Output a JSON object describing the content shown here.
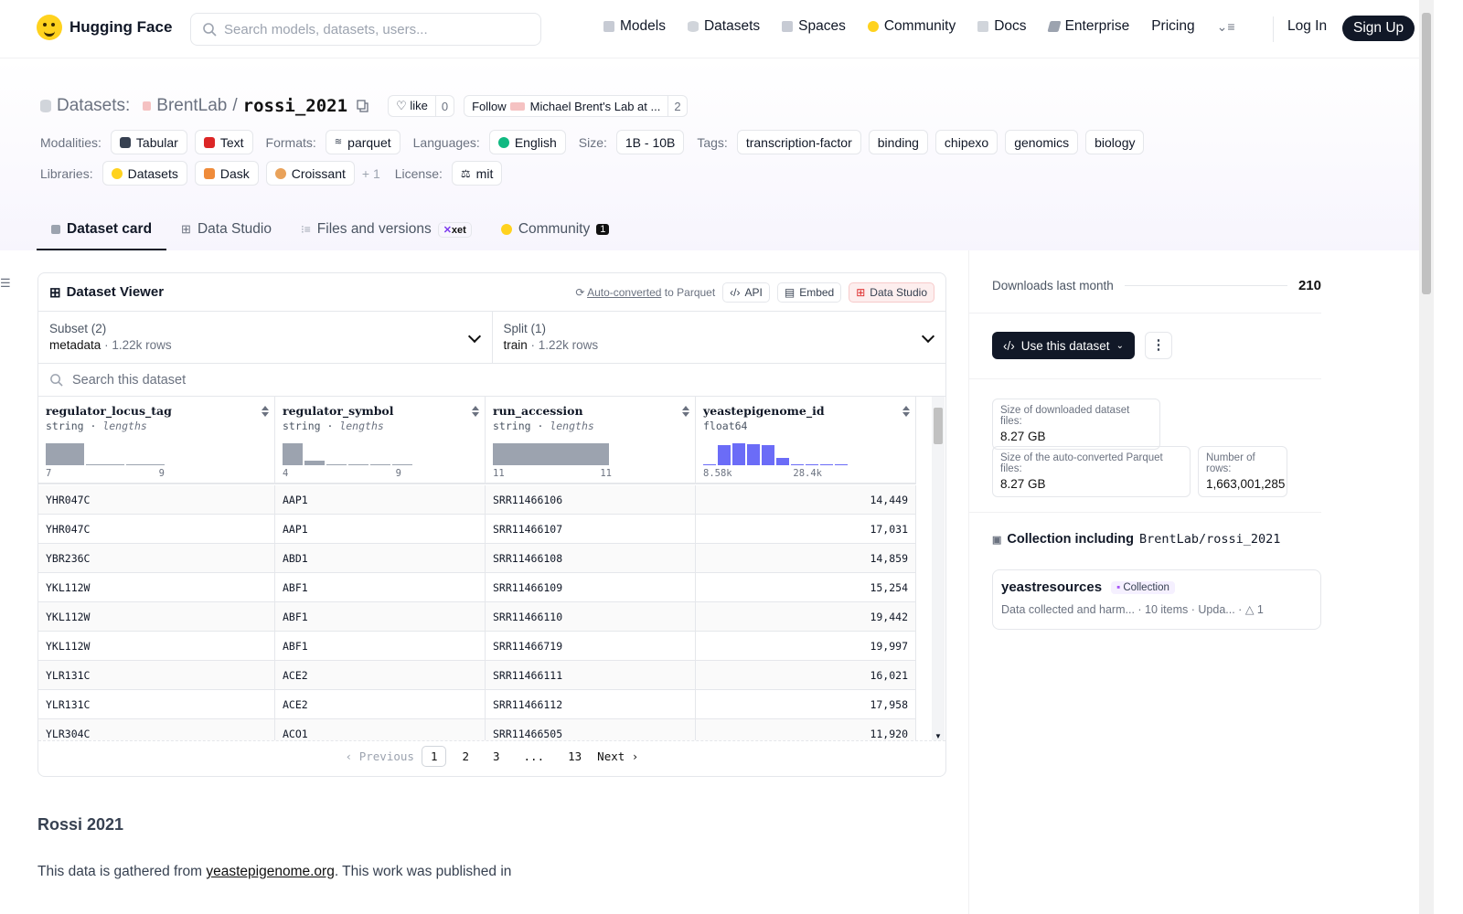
{
  "nav": {
    "brand": "Hugging Face",
    "search_placeholder": "Search models, datasets, users...",
    "links": [
      {
        "label": "Models",
        "icon": "cube-icon"
      },
      {
        "label": "Datasets",
        "icon": "database-icon"
      },
      {
        "label": "Spaces",
        "icon": "spaces-grid-icon"
      },
      {
        "label": "Community",
        "icon": "community-icon"
      },
      {
        "label": "Docs",
        "icon": "book-icon"
      },
      {
        "label": "Enterprise",
        "icon": "enterprise-icon"
      },
      {
        "label": "Pricing",
        "icon": ""
      }
    ],
    "login": "Log In",
    "signup": "Sign Up"
  },
  "header": {
    "section": "Datasets:",
    "org": "BrentLab",
    "sep": "/",
    "repo": "rossi_2021",
    "like_label": "like",
    "like_count": "0",
    "follow_label": "Follow",
    "follow_org": "Michael Brent's Lab at ...",
    "follow_count": "2"
  },
  "meta": {
    "modalities_label": "Modalities:",
    "modalities": [
      "Tabular",
      "Text"
    ],
    "formats_label": "Formats:",
    "formats": [
      "parquet"
    ],
    "languages_label": "Languages:",
    "languages": [
      "English"
    ],
    "size_label": "Size:",
    "size": "1B - 10B",
    "tags_label": "Tags:",
    "tags": [
      "transcription-factor",
      "binding",
      "chipexo",
      "genomics",
      "biology"
    ],
    "libraries_label": "Libraries:",
    "libraries": [
      "Datasets",
      "Dask",
      "Croissant"
    ],
    "libraries_more": "+ 1",
    "license_label": "License:",
    "license": "mit"
  },
  "tabs": [
    {
      "label": "Dataset card",
      "active": true
    },
    {
      "label": "Data Studio"
    },
    {
      "label": "Files and versions",
      "badge": "xet"
    },
    {
      "label": "Community",
      "count": "1"
    }
  ],
  "viewer": {
    "title": "Dataset Viewer",
    "auto_converted": "Auto-converted",
    "to_parquet": "to Parquet",
    "api": "API",
    "embed": "Embed",
    "data_studio": "Data Studio",
    "subset_label": "Subset (2)",
    "subset_value": "metadata",
    "subset_rows": "1.22k rows",
    "split_label": "Split (1)",
    "split_value": "train",
    "split_rows": "1.22k rows",
    "search_placeholder": "Search this dataset",
    "columns": [
      {
        "name": "regulator_locus_tag",
        "type": "string",
        "stat": "lengths",
        "min": "7",
        "max": "9",
        "hist": [
          1.0,
          0.05,
          0.02
        ]
      },
      {
        "name": "regulator_symbol",
        "type": "string",
        "stat": "lengths",
        "min": "4",
        "max": "9",
        "hist": [
          1.0,
          0.2,
          0.05,
          0.05,
          0.05,
          0.02
        ]
      },
      {
        "name": "run_accession",
        "type": "string",
        "stat": "lengths",
        "min": "11",
        "max": "11",
        "hist": [
          1.0
        ]
      },
      {
        "name": "yeastepigenome_id",
        "type": "float64",
        "stat": "",
        "min": "8.58k",
        "max": "28.4k",
        "hist": [
          0.05,
          0.9,
          1.0,
          0.95,
          0.9,
          0.35,
          0.05,
          0.05,
          0.05,
          0.05
        ]
      }
    ],
    "rows": [
      [
        "YHR047C",
        "AAP1",
        "SRR11466106",
        "14,449"
      ],
      [
        "YHR047C",
        "AAP1",
        "SRR11466107",
        "17,031"
      ],
      [
        "YBR236C",
        "ABD1",
        "SRR11466108",
        "14,859"
      ],
      [
        "YKL112W",
        "ABF1",
        "SRR11466109",
        "15,254"
      ],
      [
        "YKL112W",
        "ABF1",
        "SRR11466110",
        "19,442"
      ],
      [
        "YKL112W",
        "ABF1",
        "SRR11466719",
        "19,997"
      ],
      [
        "YLR131C",
        "ACE2",
        "SRR11466111",
        "16,021"
      ],
      [
        "YLR131C",
        "ACE2",
        "SRR11466112",
        "17,958"
      ],
      [
        "YLR304C",
        "ACO1",
        "SRR11466505",
        "11,920"
      ]
    ],
    "pager": {
      "prev": "Previous",
      "pages": [
        "1",
        "2",
        "3",
        "...",
        "13"
      ],
      "next": "Next"
    }
  },
  "card": {
    "heading": "Rossi 2021",
    "text_before": "This data is gathered from ",
    "link": "yeastepigenome.org",
    "text_after": ". This work was published in"
  },
  "sidebar": {
    "downloads_label": "Downloads last month",
    "downloads": "210",
    "use_dataset": "Use this dataset",
    "downloaded_size_label": "Size of downloaded dataset files:",
    "downloaded_size": "8.27 GB",
    "parquet_size_label": "Size of the auto-converted Parquet files:",
    "parquet_size": "8.27 GB",
    "num_rows_label": "Number of rows:",
    "num_rows": "1,663,001,285",
    "collection_heading": "Collection including",
    "collection_repo": "BrentLab/rossi_2021",
    "collection_name": "yeastresources",
    "collection_badge": "Collection",
    "collection_desc": "Data collected and harm...",
    "collection_items": "10 items",
    "collection_updated": "Upda...",
    "collection_upvotes": "1"
  },
  "colors": {
    "brand_yellow": "#FFD21E",
    "dark": "#111827",
    "hist_blue": "#6b6cf7",
    "hist_gray": "#9ca3af"
  }
}
